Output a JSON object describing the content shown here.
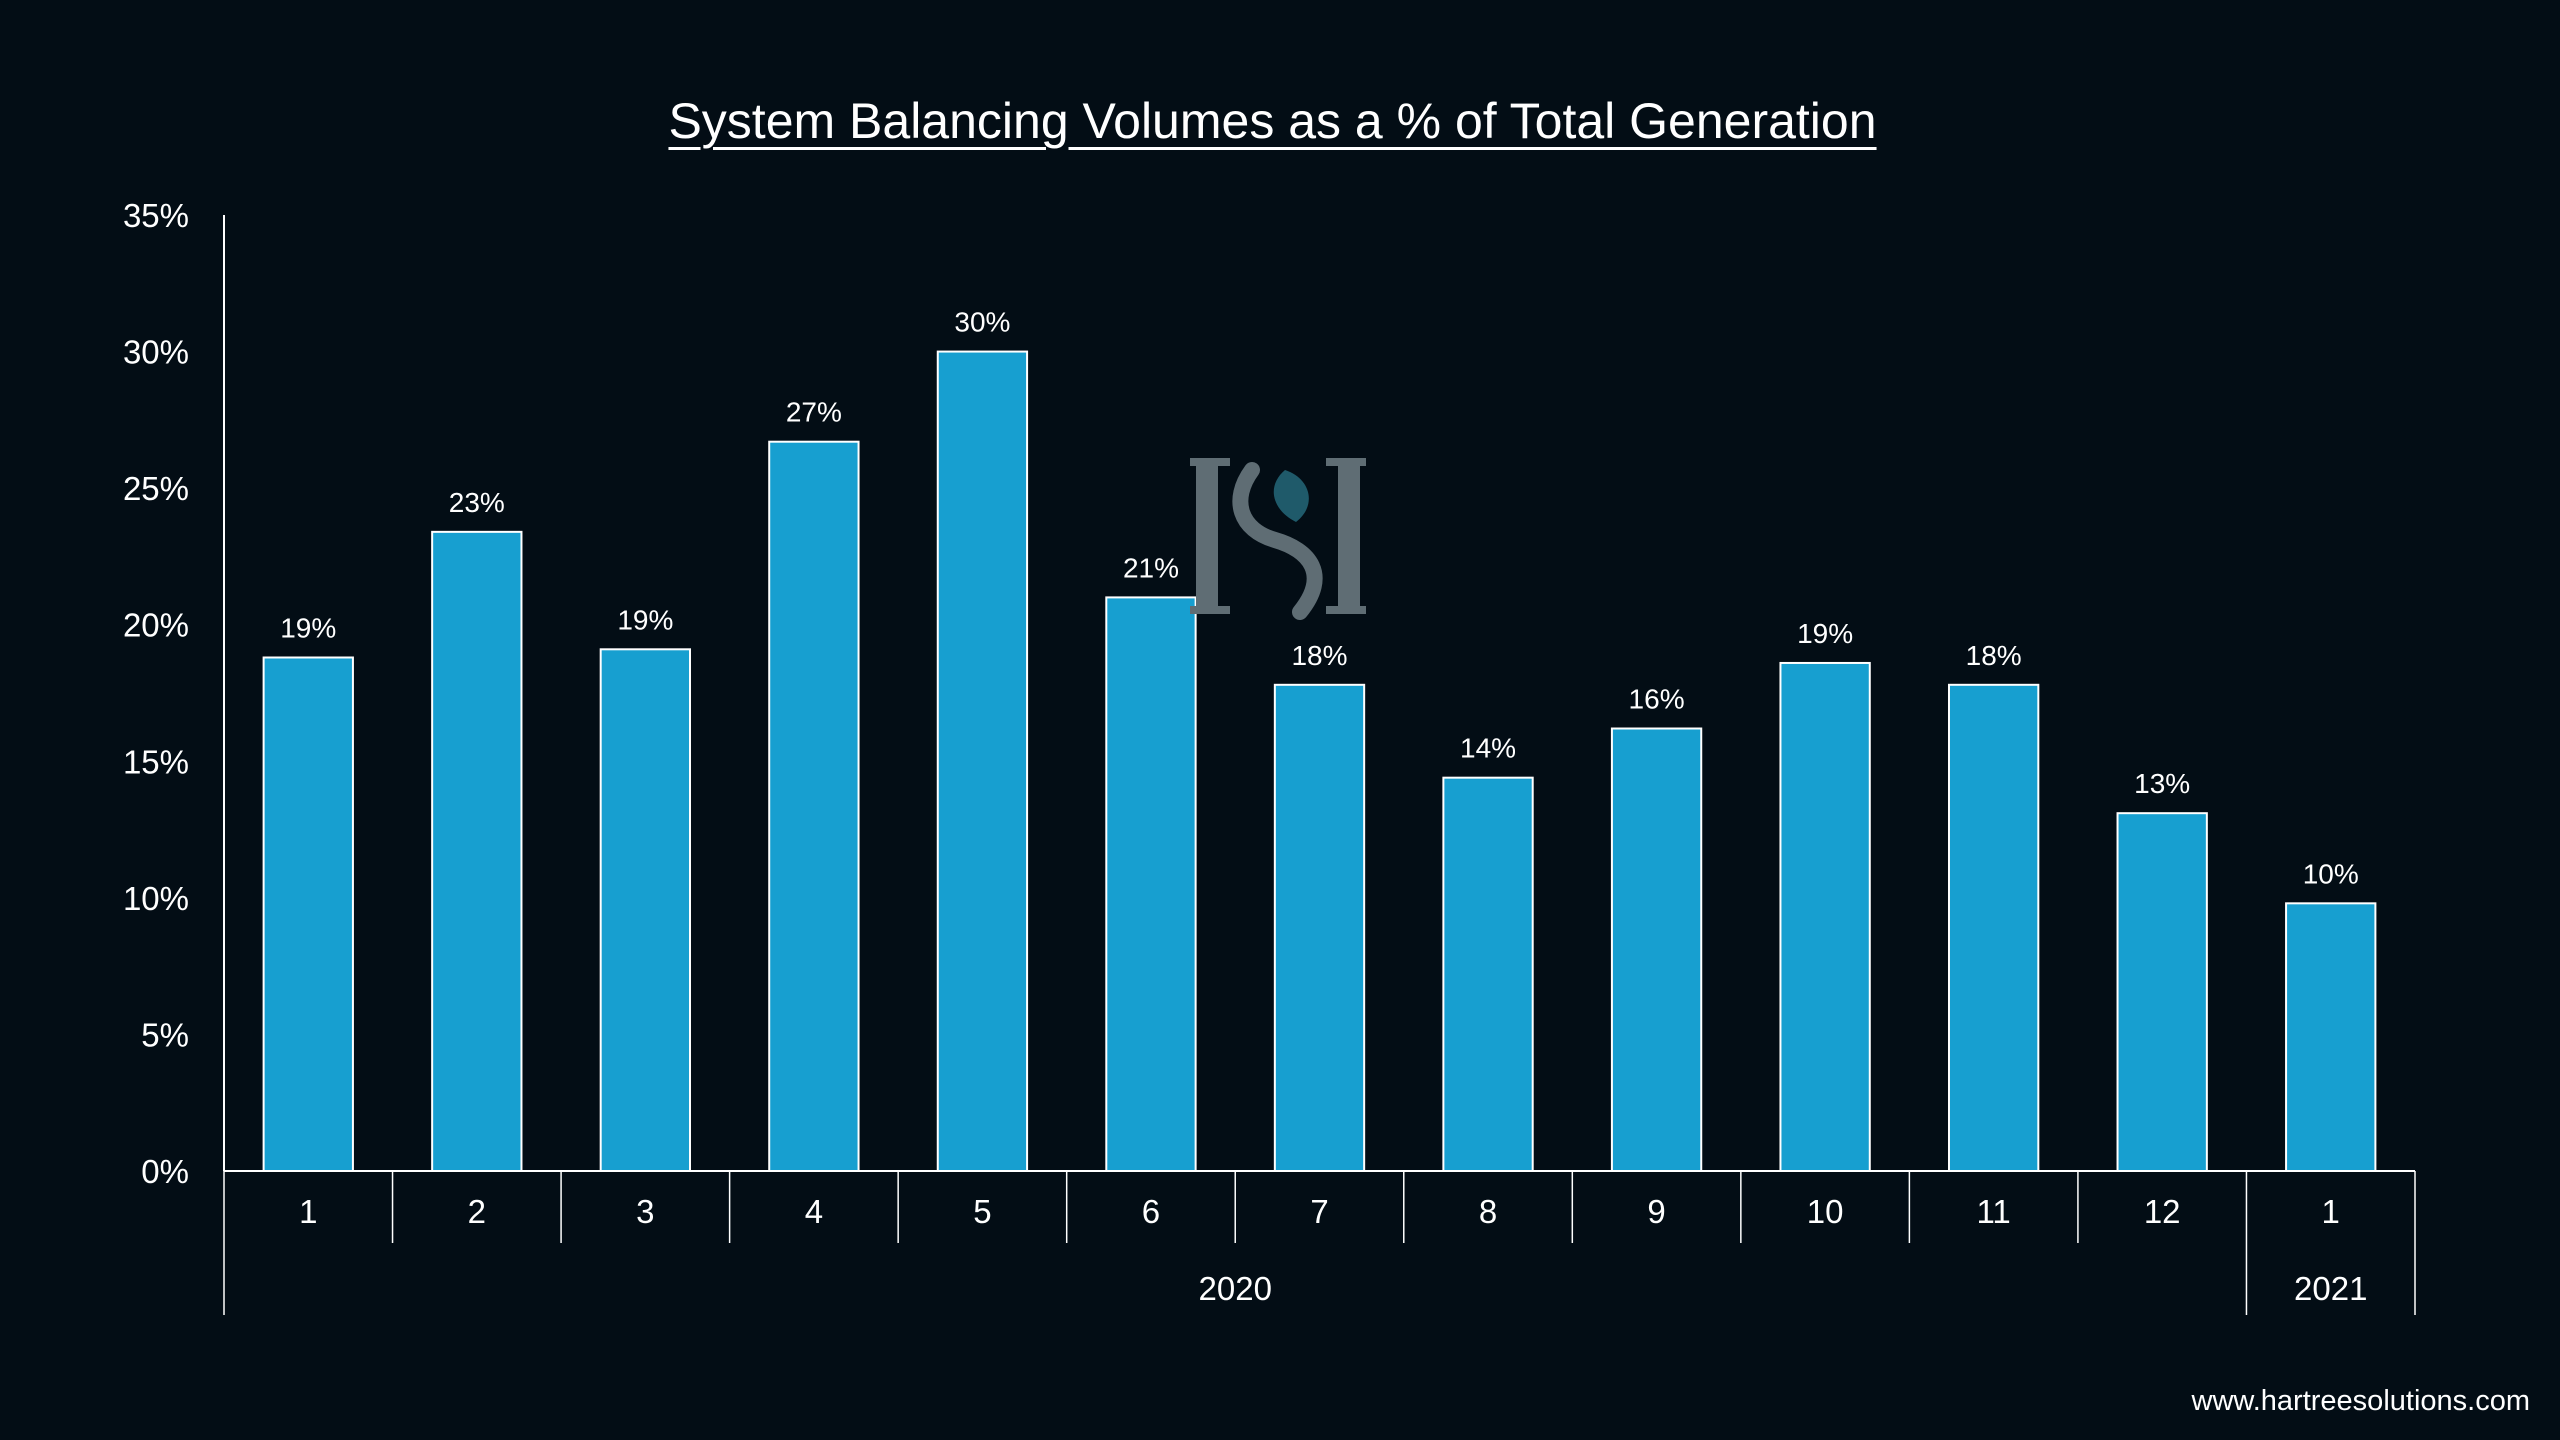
{
  "chart_data": {
    "type": "bar",
    "title": "System Balancing Volumes as a % of Total Generation",
    "categories": [
      "1",
      "2",
      "3",
      "4",
      "5",
      "6",
      "7",
      "8",
      "9",
      "10",
      "11",
      "12",
      "1"
    ],
    "category_groups": [
      {
        "label": "2020",
        "count": 12
      },
      {
        "label": "2021",
        "count": 1
      }
    ],
    "values": [
      18.8,
      23.4,
      19.1,
      26.7,
      30.0,
      21.0,
      17.8,
      14.4,
      16.2,
      18.6,
      17.8,
      13.1,
      9.8
    ],
    "data_labels": [
      "19%",
      "23%",
      "19%",
      "27%",
      "30%",
      "21%",
      "18%",
      "14%",
      "16%",
      "19%",
      "18%",
      "13%",
      "10%"
    ],
    "ylim": [
      0,
      35
    ],
    "yticks": [
      0,
      5,
      10,
      15,
      20,
      25,
      30,
      35
    ],
    "ytick_labels": [
      "0%",
      "5%",
      "10%",
      "15%",
      "20%",
      "25%",
      "30%",
      "35%"
    ],
    "xlabel": "",
    "ylabel": "",
    "grid": false,
    "legend": "none",
    "bar_color": "#179fd0",
    "bar_outline_color": "#ffffff"
  },
  "logo": {
    "name": "hartree-logo-icon",
    "letters": "HS"
  },
  "footer": {
    "url": "www.hartreesolutions.com"
  },
  "colors": {
    "background": "#030d15",
    "text": "#ffffff",
    "axis": "#ffffff"
  }
}
